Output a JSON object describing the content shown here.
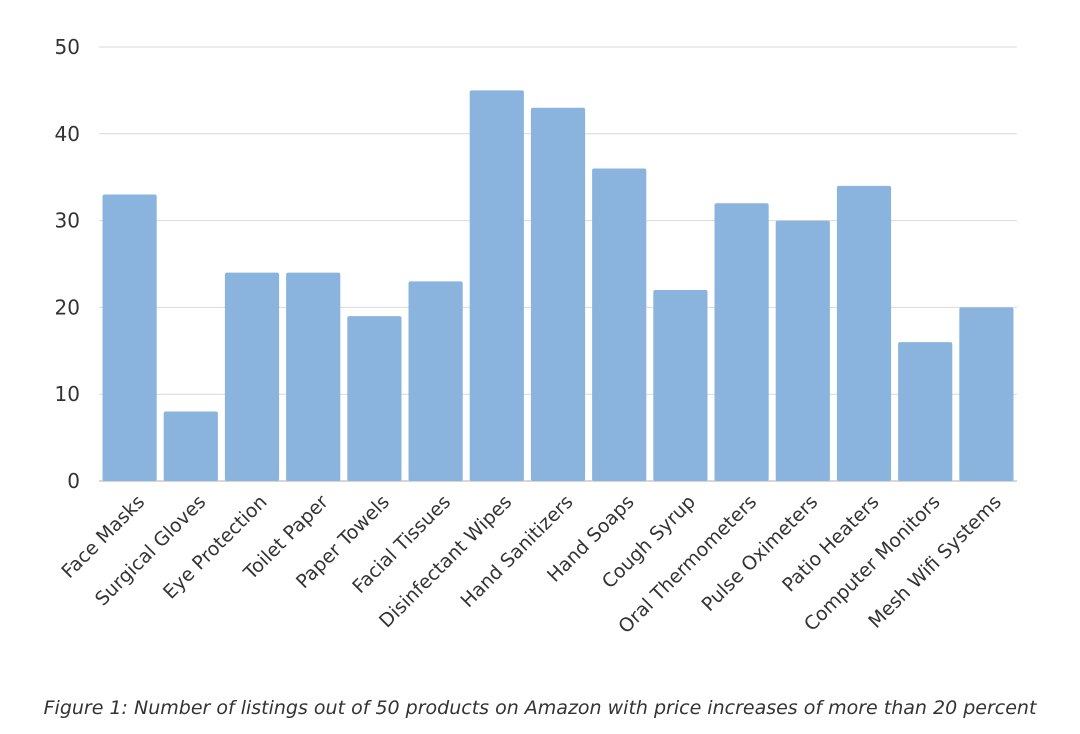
{
  "chart_data": {
    "type": "bar",
    "title": "",
    "xlabel": "",
    "ylabel": "",
    "categories": [
      "Face Masks",
      "Surgical Gloves",
      "Eye Protection",
      "Toilet Paper",
      "Paper Towels",
      "Facial Tissues",
      "Disinfectant Wipes",
      "Hand Sanitizers",
      "Hand Soaps",
      "Cough Syrup",
      "Oral Thermometers",
      "Pulse Oximeters",
      "Patio Heaters",
      "Computer Monitors",
      "Mesh Wifi Systems"
    ],
    "values": [
      33,
      8,
      24,
      24,
      19,
      23,
      45,
      43,
      36,
      22,
      32,
      30,
      34,
      16,
      20
    ],
    "ylim": [
      0,
      50
    ],
    "yticks": [
      0,
      10,
      20,
      30,
      40,
      50
    ],
    "grid": true,
    "bar_color": "#8ab4dd"
  },
  "caption": "Figure 1: Number of listings out of 50 products on Amazon with price increases of more than 20 percent"
}
